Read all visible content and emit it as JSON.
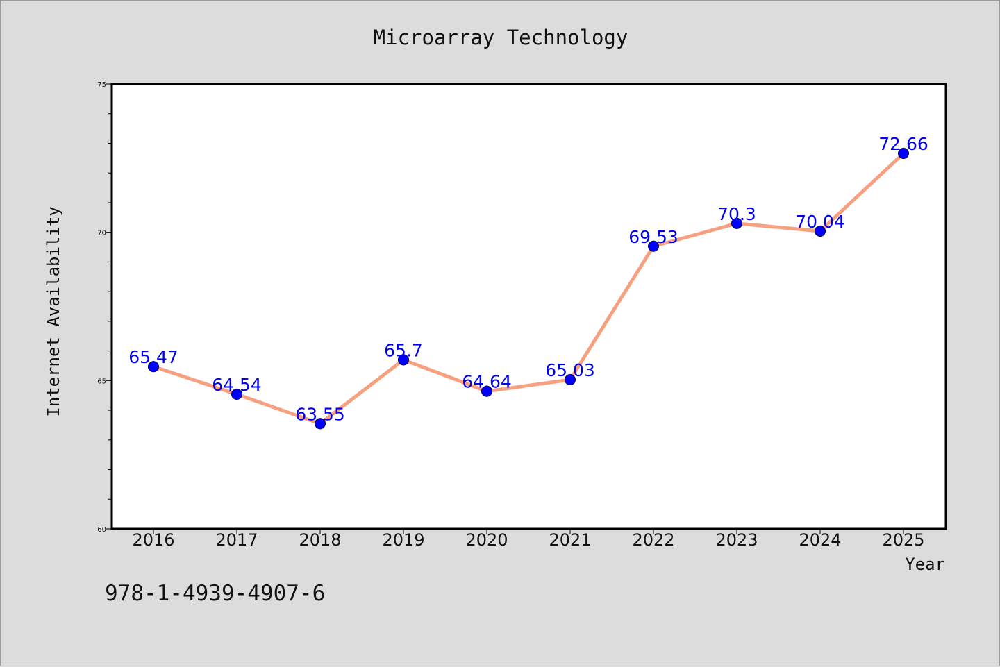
{
  "isbn": "978-1-4939-4907-6",
  "chart_data": {
    "type": "line",
    "title": "Microarray Technology",
    "xlabel": "Year",
    "ylabel": "Internet Availability",
    "categories": [
      "2016",
      "2017",
      "2018",
      "2019",
      "2020",
      "2021",
      "2022",
      "2023",
      "2024",
      "2025"
    ],
    "values": [
      65.47,
      64.54,
      63.55,
      65.7,
      64.64,
      65.03,
      69.53,
      70.3,
      70.04,
      72.66
    ],
    "data_labels": [
      "65.47",
      "64.54",
      "63.55",
      "65.7",
      "64.64",
      "65.03",
      "69.53",
      "70.3",
      "70.04",
      "72.66"
    ],
    "ylim": [
      60,
      75
    ],
    "y_ticks": [
      "60",
      "65",
      "70",
      "75"
    ],
    "y_tick_values": [
      60,
      65,
      70,
      75
    ],
    "line_color": "#f7a07f",
    "marker_color": "#0000ff",
    "label_color": "#0000ee",
    "grid": false,
    "legend": "none"
  }
}
